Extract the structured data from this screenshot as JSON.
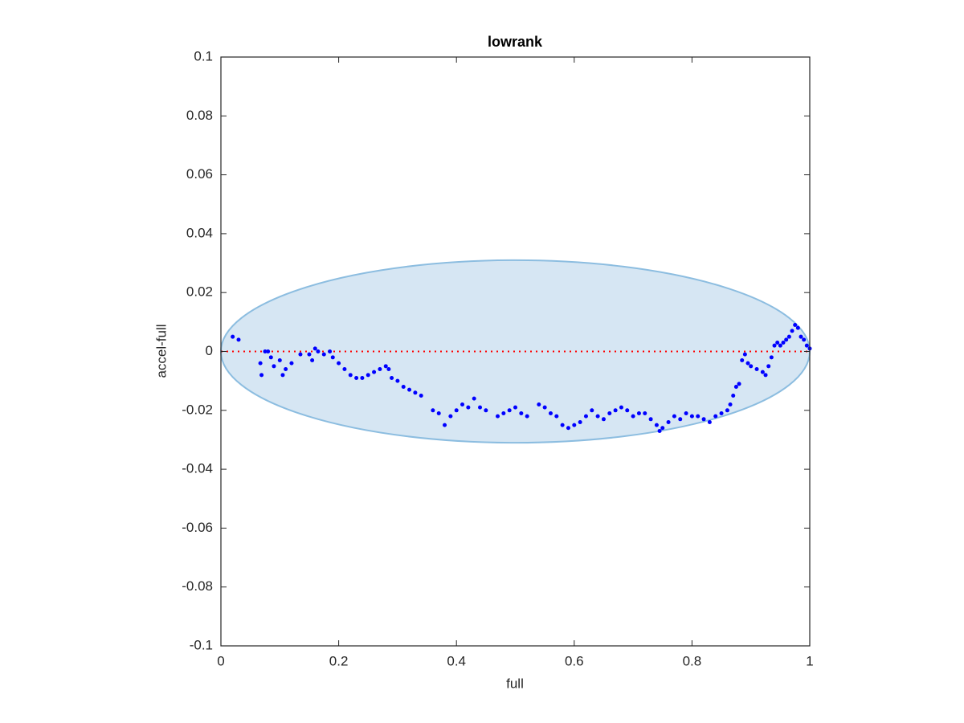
{
  "chart_data": {
    "type": "scatter",
    "title": "lowrank",
    "x_label": "full",
    "y_label": "accel-full",
    "color": "#0000ff",
    "xlim": [
      0,
      1
    ],
    "xticks": [
      0,
      0.2,
      0.4,
      0.6,
      0.8,
      1
    ],
    "ylim": [
      -0.1,
      0.1
    ],
    "yticks": [
      -0.1,
      -0.08,
      -0.06,
      -0.04,
      -0.02,
      0,
      0.02,
      0.04,
      0.06,
      0.08,
      0.1
    ],
    "hline": 0,
    "hline_color": "#ff0000",
    "ellipse": {
      "center": [
        0.5,
        0
      ],
      "radii": [
        0.5,
        0.031
      ],
      "fill": "#d6e6f3",
      "stroke": "#8cbde0"
    },
    "x": [
      0.02,
      0.03,
      0.067,
      0.069,
      0.075,
      0.08,
      0.085,
      0.09,
      0.1,
      0.105,
      0.11,
      0.12,
      0.135,
      0.15,
      0.155,
      0.16,
      0.165,
      0.175,
      0.185,
      0.19,
      0.2,
      0.21,
      0.22,
      0.23,
      0.24,
      0.25,
      0.26,
      0.27,
      0.28,
      0.285,
      0.29,
      0.3,
      0.31,
      0.32,
      0.33,
      0.34,
      0.36,
      0.37,
      0.38,
      0.39,
      0.4,
      0.41,
      0.42,
      0.43,
      0.44,
      0.45,
      0.47,
      0.48,
      0.49,
      0.5,
      0.51,
      0.52,
      0.54,
      0.55,
      0.56,
      0.57,
      0.58,
      0.59,
      0.6,
      0.61,
      0.62,
      0.63,
      0.64,
      0.65,
      0.66,
      0.67,
      0.68,
      0.69,
      0.7,
      0.71,
      0.72,
      0.73,
      0.74,
      0.745,
      0.75,
      0.76,
      0.77,
      0.78,
      0.79,
      0.8,
      0.81,
      0.82,
      0.83,
      0.84,
      0.85,
      0.86,
      0.865,
      0.87,
      0.875,
      0.88,
      0.885,
      0.89,
      0.895,
      0.9,
      0.91,
      0.92,
      0.925,
      0.93,
      0.935,
      0.94,
      0.945,
      0.95,
      0.955,
      0.96,
      0.965,
      0.97,
      0.975,
      0.98,
      0.985,
      0.99,
      0.995,
      1.0
    ],
    "values": [
      0.005,
      0.004,
      -0.004,
      -0.008,
      0,
      0,
      -0.002,
      -0.005,
      -0.003,
      -0.008,
      -0.006,
      -0.004,
      -0.001,
      -0.001,
      -0.003,
      0.001,
      0,
      -0.001,
      0,
      -0.002,
      -0.004,
      -0.006,
      -0.008,
      -0.009,
      -0.009,
      -0.008,
      -0.007,
      -0.006,
      -0.005,
      -0.006,
      -0.009,
      -0.01,
      -0.012,
      -0.013,
      -0.014,
      -0.015,
      -0.02,
      -0.021,
      -0.025,
      -0.022,
      -0.02,
      -0.018,
      -0.019,
      -0.016,
      -0.019,
      -0.02,
      -0.022,
      -0.021,
      -0.02,
      -0.019,
      -0.021,
      -0.022,
      -0.018,
      -0.019,
      -0.021,
      -0.022,
      -0.025,
      -0.026,
      -0.025,
      -0.024,
      -0.022,
      -0.02,
      -0.022,
      -0.023,
      -0.021,
      -0.02,
      -0.019,
      -0.02,
      -0.022,
      -0.021,
      -0.021,
      -0.023,
      -0.025,
      -0.027,
      -0.026,
      -0.024,
      -0.022,
      -0.023,
      -0.021,
      -0.022,
      -0.022,
      -0.023,
      -0.024,
      -0.022,
      -0.021,
      -0.02,
      -0.018,
      -0.015,
      -0.012,
      -0.011,
      -0.003,
      -0.001,
      -0.004,
      -0.005,
      -0.006,
      -0.007,
      -0.008,
      -0.005,
      -0.002,
      0.002,
      0.003,
      0.002,
      0.003,
      0.004,
      0.005,
      0.007,
      0.009,
      0.008,
      0.005,
      0.004,
      0.002,
      0.001
    ]
  }
}
